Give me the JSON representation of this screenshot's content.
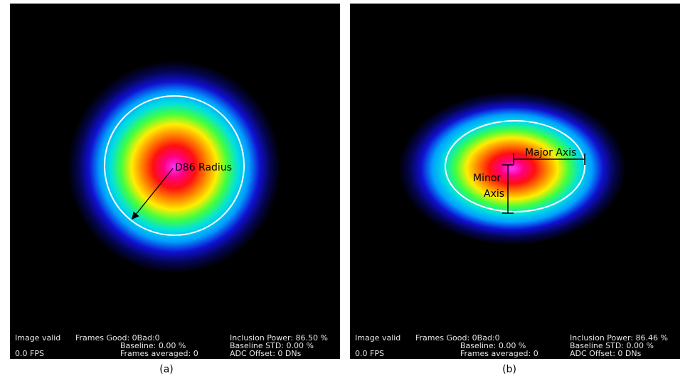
{
  "panels": [
    {
      "status": {
        "image_state": "Image valid",
        "frames_good": "Frames Good: 0Bad:0",
        "baseline": "Baseline: 0.00 %",
        "frames_averaged": "Frames averaged: 0",
        "fps": "0.0 FPS",
        "inclusion_power": "Inclusion Power: 86.50 %",
        "baseline_std": "Baseline STD:  0.00 %",
        "adc_offset": "ADC Offset: 0 DNs"
      },
      "annotations": {
        "radius": "D86 Radius"
      },
      "caption": "(a)"
    },
    {
      "status": {
        "image_state": "Image valid",
        "frames_good": "Frames Good: 0Bad:0",
        "baseline": "Baseline: 0.00 %",
        "frames_averaged": "Frames averaged: 0",
        "fps": "0.0 FPS",
        "inclusion_power": "Inclusion Power: 86.46 %",
        "baseline_std": "Baseline STD:  0.00 %",
        "adc_offset": "ADC Offset: 0 DNs"
      },
      "annotations": {
        "major_axis": "Major Axis",
        "minor_axis": [
          "Minor",
          "Axis"
        ]
      },
      "caption": "(b)"
    }
  ]
}
